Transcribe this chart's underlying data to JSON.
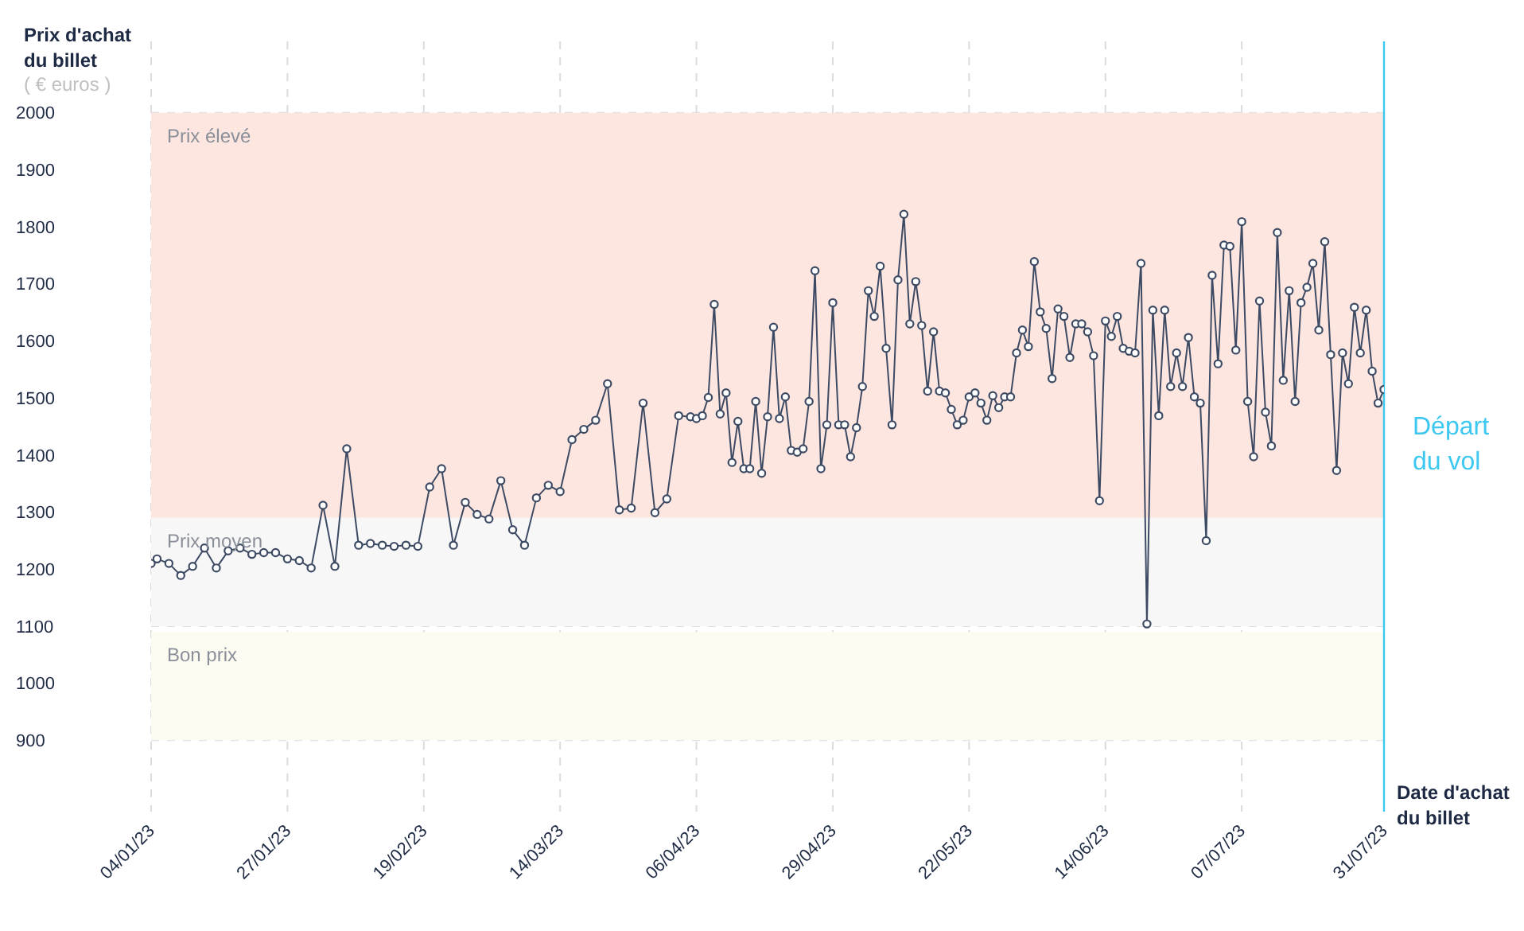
{
  "chart_data": {
    "type": "line",
    "ylabel": "Prix d'achat du billet",
    "xlabel": "Date d'achat du billet",
    "annotations": [
      "( € euros )"
    ],
    "x": [
      "2023-01-04",
      "2023-01-05",
      "2023-01-07",
      "2023-01-09",
      "2023-01-11",
      "2023-01-13",
      "2023-01-15",
      "2023-01-17",
      "2023-01-19",
      "2023-01-21",
      "2023-01-23",
      "2023-01-25",
      "2023-01-27",
      "2023-01-29",
      "2023-01-31",
      "2023-02-02",
      "2023-02-04",
      "2023-02-06",
      "2023-02-08",
      "2023-02-10",
      "2023-02-12",
      "2023-02-14",
      "2023-02-16",
      "2023-02-18",
      "2023-02-20",
      "2023-02-22",
      "2023-02-24",
      "2023-02-26",
      "2023-02-28",
      "2023-03-02",
      "2023-03-04",
      "2023-03-06",
      "2023-03-08",
      "2023-03-10",
      "2023-03-12",
      "2023-03-14",
      "2023-03-16",
      "2023-03-18",
      "2023-03-20",
      "2023-03-22",
      "2023-03-24",
      "2023-03-26",
      "2023-03-28",
      "2023-03-30",
      "2023-04-01",
      "2023-04-03",
      "2023-04-05",
      "2023-04-06",
      "2023-04-07",
      "2023-04-08",
      "2023-04-09",
      "2023-04-10",
      "2023-04-11",
      "2023-04-12",
      "2023-04-13",
      "2023-04-14",
      "2023-04-15",
      "2023-04-16",
      "2023-04-17",
      "2023-04-18",
      "2023-04-19",
      "2023-04-20",
      "2023-04-21",
      "2023-04-22",
      "2023-04-23",
      "2023-04-24",
      "2023-04-25",
      "2023-04-26",
      "2023-04-27",
      "2023-04-28",
      "2023-04-29",
      "2023-04-30",
      "2023-05-01",
      "2023-05-02",
      "2023-05-03",
      "2023-05-04",
      "2023-05-05",
      "2023-05-06",
      "2023-05-07",
      "2023-05-08",
      "2023-05-09",
      "2023-05-10",
      "2023-05-11",
      "2023-05-12",
      "2023-05-13",
      "2023-05-14",
      "2023-05-15",
      "2023-05-16",
      "2023-05-17",
      "2023-05-18",
      "2023-05-19",
      "2023-05-20",
      "2023-05-21",
      "2023-05-22",
      "2023-05-23",
      "2023-05-24",
      "2023-05-25",
      "2023-05-26",
      "2023-05-27",
      "2023-05-28",
      "2023-05-29",
      "2023-05-30",
      "2023-05-31",
      "2023-06-01",
      "2023-06-02",
      "2023-06-03",
      "2023-06-04",
      "2023-06-05",
      "2023-06-06",
      "2023-06-07",
      "2023-06-08",
      "2023-06-09",
      "2023-06-10",
      "2023-06-11",
      "2023-06-12",
      "2023-06-13",
      "2023-06-14",
      "2023-06-15",
      "2023-06-16",
      "2023-06-17",
      "2023-06-18",
      "2023-06-19",
      "2023-06-20",
      "2023-06-21",
      "2023-06-22",
      "2023-06-23",
      "2023-06-24",
      "2023-06-25",
      "2023-06-26",
      "2023-06-27",
      "2023-06-28",
      "2023-06-29",
      "2023-06-30",
      "2023-07-01",
      "2023-07-02",
      "2023-07-03",
      "2023-07-04",
      "2023-07-05",
      "2023-07-06",
      "2023-07-07",
      "2023-07-08",
      "2023-07-09",
      "2023-07-10",
      "2023-07-11",
      "2023-07-12",
      "2023-07-13",
      "2023-07-14",
      "2023-07-15",
      "2023-07-16",
      "2023-07-17",
      "2023-07-18",
      "2023-07-19",
      "2023-07-20",
      "2023-07-21",
      "2023-07-22",
      "2023-07-23",
      "2023-07-24",
      "2023-07-25",
      "2023-07-26",
      "2023-07-27",
      "2023-07-28",
      "2023-07-29",
      "2023-07-30",
      "2023-07-31"
    ],
    "series": [
      {
        "color": "#3d4a63",
        "values": [
          1210,
          1218,
          1210,
          1189,
          1205,
          1237,
          1202,
          1232,
          1237,
          1226,
          1229,
          1229,
          1218,
          1215,
          1202,
          1312,
          1205,
          1411,
          1242,
          1245,
          1242,
          1240,
          1242,
          1240,
          1344,
          1376,
          1242,
          1317,
          1296,
          1288,
          1355,
          1269,
          1242,
          1325,
          1347,
          1336,
          1427,
          1445,
          1461,
          1525,
          1304,
          1307,
          1491,
          1299,
          1323,
          1469,
          1467,
          1464,
          1469,
          1501,
          1664,
          1472,
          1509,
          1387,
          1459,
          1376,
          1376,
          1494,
          1368,
          1467,
          1624,
          1464,
          1502,
          1408,
          1405,
          1411,
          1494,
          1723,
          1376,
          1453,
          1667,
          1453,
          1453,
          1397,
          1448,
          1520,
          1688,
          1643,
          1731,
          1587,
          1453,
          1707,
          1822,
          1630,
          1704,
          1627,
          1512,
          1616,
          1512,
          1509,
          1480,
          1453,
          1461,
          1502,
          1509,
          1491,
          1461,
          1504,
          1483,
          1502,
          1502,
          1579,
          1619,
          1590,
          1739,
          1651,
          1622,
          1534,
          1656,
          1643,
          1571,
          1630,
          1630,
          1616,
          1574,
          1320,
          1635,
          1608,
          1643,
          1587,
          1582,
          1579,
          1736,
          1104,
          1654,
          1469,
          1654,
          1520,
          1579,
          1520,
          1606,
          1502,
          1491,
          1250,
          1715,
          1560,
          1768,
          1766,
          1584,
          1809,
          1494,
          1397,
          1670,
          1475,
          1416,
          1790,
          1531,
          1688,
          1494,
          1667,
          1694,
          1736,
          1619,
          1774,
          1576,
          1373,
          1579,
          1525,
          1659,
          1579,
          1654,
          1547,
          1491,
          1515
        ]
      }
    ],
    "xlim": [
      "2023-01-04",
      "2023-07-31"
    ],
    "xticks": [
      {
        "value": "2023-01-04",
        "label": "04/01/23"
      },
      {
        "value": "2023-01-27",
        "label": "27/01/23"
      },
      {
        "value": "2023-02-19",
        "label": "19/02/23"
      },
      {
        "value": "2023-03-14",
        "label": "14/03/23"
      },
      {
        "value": "2023-04-06",
        "label": "06/04/23"
      },
      {
        "value": "2023-04-29",
        "label": "29/04/23"
      },
      {
        "value": "2023-05-22",
        "label": "22/05/23"
      },
      {
        "value": "2023-06-14",
        "label": "14/06/23"
      },
      {
        "value": "2023-07-07",
        "label": "07/07/23"
      },
      {
        "value": "2023-07-31",
        "label": "31/07/23"
      }
    ],
    "ylim": [
      775,
      2125
    ],
    "yticks": [
      900,
      1000,
      1100,
      1200,
      1300,
      1400,
      1500,
      1600,
      1700,
      1800,
      1900,
      2000
    ],
    "bands": [
      {
        "axis": "y",
        "from": 1290,
        "to": 2000,
        "label": "Prix élevé",
        "color": "#fde6e0"
      },
      {
        "axis": "y",
        "from": 1100,
        "to": 1290,
        "label": "Prix moyen",
        "color": "#f7f7f7"
      },
      {
        "axis": "y",
        "from": 900,
        "to": 1090,
        "label": "Bon prix",
        "color": "#fbfbf1"
      }
    ],
    "ref_lines": [
      {
        "axis": "x",
        "value": "2023-07-31",
        "label": "Départ du vol",
        "color": "#3cc8f0"
      }
    ],
    "grid": true,
    "marker": "circle",
    "line_style": "solid"
  }
}
